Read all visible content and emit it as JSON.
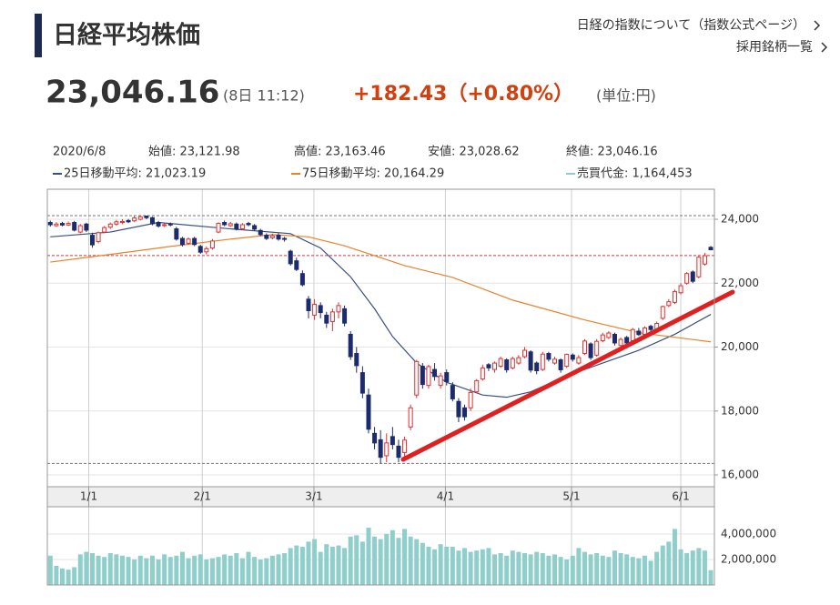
{
  "header": {
    "title": "日経平均株価",
    "links": [
      "日経の指数について（指数公式ページ）",
      "採用銘柄一覧"
    ],
    "price": "23,046.16",
    "time": "(8日 11:12)",
    "change": "+182.43（+0.80%）",
    "unit": "(単位:円)",
    "info": [
      "2020/6/8",
      "始値: 23,121.98",
      "高値: 23,163.46",
      "安値: 23,028.62",
      "終値: 23,046.16"
    ]
  },
  "chart_data": {
    "type": "candlestick",
    "grid": true,
    "up_color": "#e03030",
    "down_color": "#1c2b6e",
    "ylim": [
      15630,
      24940
    ],
    "yticks": [
      {
        "value": 16000,
        "label": "16,000"
      },
      {
        "value": 18000,
        "label": "18,000"
      },
      {
        "value": 20000,
        "label": "20,000"
      },
      {
        "value": 22000,
        "label": "22,000"
      },
      {
        "value": 24000,
        "label": "24,000"
      }
    ],
    "xlim": [
      -0.5,
      110.6
    ],
    "xticks": [
      {
        "value": 6.4,
        "label": "1/1"
      },
      {
        "value": 25.3,
        "label": "2/1"
      },
      {
        "value": 43.9,
        "label": "3/1"
      },
      {
        "value": 65.8,
        "label": "4/1"
      },
      {
        "value": 86.8,
        "label": "5/1"
      },
      {
        "value": 105,
        "label": "6/1"
      }
    ],
    "open": [
      23900,
      23800,
      23870,
      23820,
      23900,
      23600,
      23850,
      23500,
      23300,
      23600,
      23750,
      23850,
      23900,
      23960,
      23950,
      24000,
      24100,
      24050,
      23900,
      23800,
      23850,
      23700,
      23400,
      23250,
      23400,
      23150,
      22980,
      23100,
      23600,
      23900,
      23800,
      23850,
      23700,
      23870,
      23800,
      23650,
      23500,
      23420,
      23500,
      23400,
      23000,
      22700,
      22300,
      21500,
      21000,
      21300,
      21000,
      20800,
      21100,
      21200,
      20400,
      19800,
      19200,
      18500,
      17300,
      17100,
      16600,
      17200,
      16900,
      16700,
      17500,
      18500,
      19400,
      18800,
      19300,
      18800,
      19200,
      18800,
      18300,
      18100,
      18100,
      18600,
      19000,
      19450,
      19300,
      19400,
      19600,
      19350,
      19500,
      19700,
      19850,
      19500,
      19300,
      19800,
      19500,
      19600,
      19400,
      19750,
      19500,
      19800,
      20100,
      19750,
      20200,
      20300,
      20400,
      20050,
      20300,
      20200,
      20500,
      20400,
      20650,
      20500,
      20900,
      21300,
      21400,
      21700,
      22000,
      22350,
      22200,
      22600,
      23121.98
    ],
    "high": [
      23960,
      23910,
      23920,
      23930,
      23950,
      23850,
      23890,
      23580,
      23620,
      23790,
      23900,
      23980,
      24000,
      24010,
      24100,
      24100,
      24115.95,
      24080,
      23950,
      23880,
      23900,
      23760,
      23450,
      23430,
      23450,
      23200,
      23150,
      23380,
      23900,
      23960,
      23920,
      23900,
      23880,
      23920,
      23850,
      23700,
      23560,
      23550,
      23560,
      23450,
      23050,
      22800,
      22400,
      21600,
      21500,
      21400,
      21100,
      21200,
      21400,
      21300,
      20500,
      20000,
      19400,
      18700,
      17500,
      17400,
      17300,
      17500,
      17100,
      17200,
      18200,
      19600,
      19500,
      19450,
      19500,
      19200,
      19300,
      18900,
      18400,
      18200,
      18700,
      19000,
      19450,
      19500,
      19550,
      19700,
      19650,
      19700,
      19750,
      20000,
      19900,
      19550,
      19850,
      19850,
      19700,
      19650,
      19800,
      19800,
      19750,
      20250,
      20150,
      20250,
      20450,
      20500,
      20450,
      20300,
      20350,
      20600,
      20600,
      20650,
      20700,
      20800,
      21300,
      21500,
      21800,
      22000,
      22350,
      22400,
      22850,
      22950,
      23163.46
    ],
    "low": [
      23770,
      23760,
      23780,
      23790,
      23620,
      23560,
      23600,
      23110,
      23250,
      23560,
      23700,
      23800,
      23850,
      23880,
      23910,
      23960,
      24000,
      23810,
      23740,
      23760,
      23780,
      23330,
      23150,
      23200,
      23160,
      22920,
      22900,
      23050,
      23560,
      23780,
      23760,
      23650,
      23660,
      23780,
      23640,
      23480,
      23350,
      23370,
      23330,
      23300,
      22550,
      22380,
      21900,
      20900,
      20850,
      20900,
      20600,
      20500,
      20900,
      20650,
      19600,
      19200,
      18400,
      17300,
      16800,
      16358.19,
      16400,
      16800,
      16400,
      16550,
      17400,
      18400,
      18700,
      18700,
      18950,
      18700,
      18800,
      18300,
      17650,
      17700,
      18000,
      18550,
      18950,
      19250,
      19200,
      19350,
      19200,
      19300,
      19450,
      19650,
      19200,
      19150,
      19250,
      19550,
      19450,
      19200,
      19350,
      19550,
      19450,
      19750,
      19600,
      19700,
      20150,
      20250,
      20050,
      20000,
      20050,
      20150,
      20350,
      20350,
      20450,
      20450,
      20850,
      21250,
      21350,
      21650,
      21950,
      22000,
      22150,
      22550,
      23028.62
    ],
    "close": [
      23830,
      23850,
      23820,
      23870,
      23660,
      23800,
      23660,
      23200,
      23580,
      23740,
      23850,
      23920,
      23930,
      23920,
      24040,
      24080,
      24050,
      23860,
      23790,
      23830,
      23830,
      23380,
      23210,
      23380,
      23210,
      22970,
      23080,
      23320,
      23870,
      23830,
      23860,
      23690,
      23830,
      23830,
      23690,
      23520,
      23400,
      23480,
      23380,
      23390,
      22610,
      22430,
      21950,
      21140,
      21340,
      21080,
      20750,
      21100,
      21300,
      20750,
      19700,
      19420,
      18560,
      17430,
      17000,
      16550,
      17000,
      16950,
      16550,
      17090,
      18100,
      19550,
      18830,
      19390,
      19080,
      19100,
      18920,
      18380,
      17820,
      17820,
      18580,
      18950,
      19350,
      19350,
      19500,
      19640,
      19290,
      19640,
      19670,
      19900,
      19280,
      19260,
      19780,
      19620,
      19620,
      19290,
      19770,
      19620,
      19670,
      20190,
      19670,
      20180,
      20380,
      20440,
      20130,
      20240,
      20130,
      20550,
      20390,
      20600,
      20550,
      20740,
      21270,
      21420,
      21740,
      21920,
      22300,
      22060,
      22810,
      22860,
      23046.16
    ],
    "series": [
      {
        "name": "25日移動平均: 21,023.19",
        "color": "#3a4f80",
        "x": [
          0,
          10,
          18,
          30,
          40,
          45,
          50,
          54,
          57,
          61,
          66,
          72,
          76,
          80,
          86,
          92,
          98,
          104,
          110
        ],
        "values": [
          23450,
          23600,
          23900,
          23700,
          23550,
          23100,
          22200,
          21200,
          20330,
          19500,
          18900,
          18500,
          18430,
          18600,
          19100,
          19500,
          19900,
          20400,
          21023.19
        ]
      },
      {
        "name": "75日移動平均: 20,164.29",
        "color": "#e8822a",
        "x": [
          0,
          10,
          20,
          30,
          37,
          43,
          49,
          55,
          59,
          67,
          77,
          89,
          98,
          110
        ],
        "values": [
          22660,
          22900,
          23150,
          23380,
          23520,
          23450,
          23170,
          22800,
          22550,
          22180,
          21470,
          20850,
          20450,
          20164.29
        ]
      }
    ],
    "reference_lines": [
      {
        "value": 24115.95,
        "color": "#777"
      },
      {
        "value": 22863.73,
        "color": "#e03030"
      },
      {
        "value": 16358.19,
        "color": "#777"
      }
    ],
    "volume": {
      "name": "売買代金: 1,164,453",
      "color": "#8ecfcc",
      "ylim": [
        0,
        6140000
      ],
      "yticks": [
        {
          "value": 2000000,
          "label": "2,000,000"
        },
        {
          "value": 4000000,
          "label": "4,000,000"
        }
      ],
      "values": [
        2300000,
        1500000,
        1300000,
        1200000,
        1400000,
        2400000,
        2600000,
        2500000,
        2300000,
        2200000,
        2500000,
        2400000,
        2300000,
        2200000,
        2000000,
        2300000,
        2100000,
        2300000,
        2000000,
        2400000,
        2200000,
        2300000,
        2600000,
        2100000,
        2300000,
        2400000,
        2000000,
        2100000,
        2200000,
        2400000,
        2300000,
        2500000,
        2100000,
        2600000,
        2200000,
        2000000,
        2100000,
        2300000,
        2400000,
        2500000,
        2900000,
        3100000,
        3000000,
        3400000,
        3600000,
        2600000,
        3200000,
        3000000,
        3100000,
        2900000,
        3800000,
        3900000,
        3400000,
        4500000,
        3800000,
        3600000,
        4000000,
        4300000,
        3700000,
        4400000,
        3800000,
        3600000,
        3300000,
        3000000,
        2800000,
        3200000,
        3000000,
        3000000,
        2700000,
        2900000,
        2600000,
        2700000,
        2800000,
        2900000,
        2400000,
        2500000,
        2300000,
        2700000,
        2600000,
        2500000,
        2400000,
        2600000,
        2500000,
        2300000,
        2400000,
        2200000,
        2000000,
        2300000,
        2900000,
        2600000,
        2400000,
        2500000,
        2300000,
        2200000,
        2700000,
        2500000,
        2400000,
        2200000,
        2100000,
        2300000,
        1900000,
        2600000,
        3100000,
        3400000,
        4400000,
        2800000,
        2500000,
        2700000,
        2900000,
        2700000,
        1164453
      ]
    }
  }
}
